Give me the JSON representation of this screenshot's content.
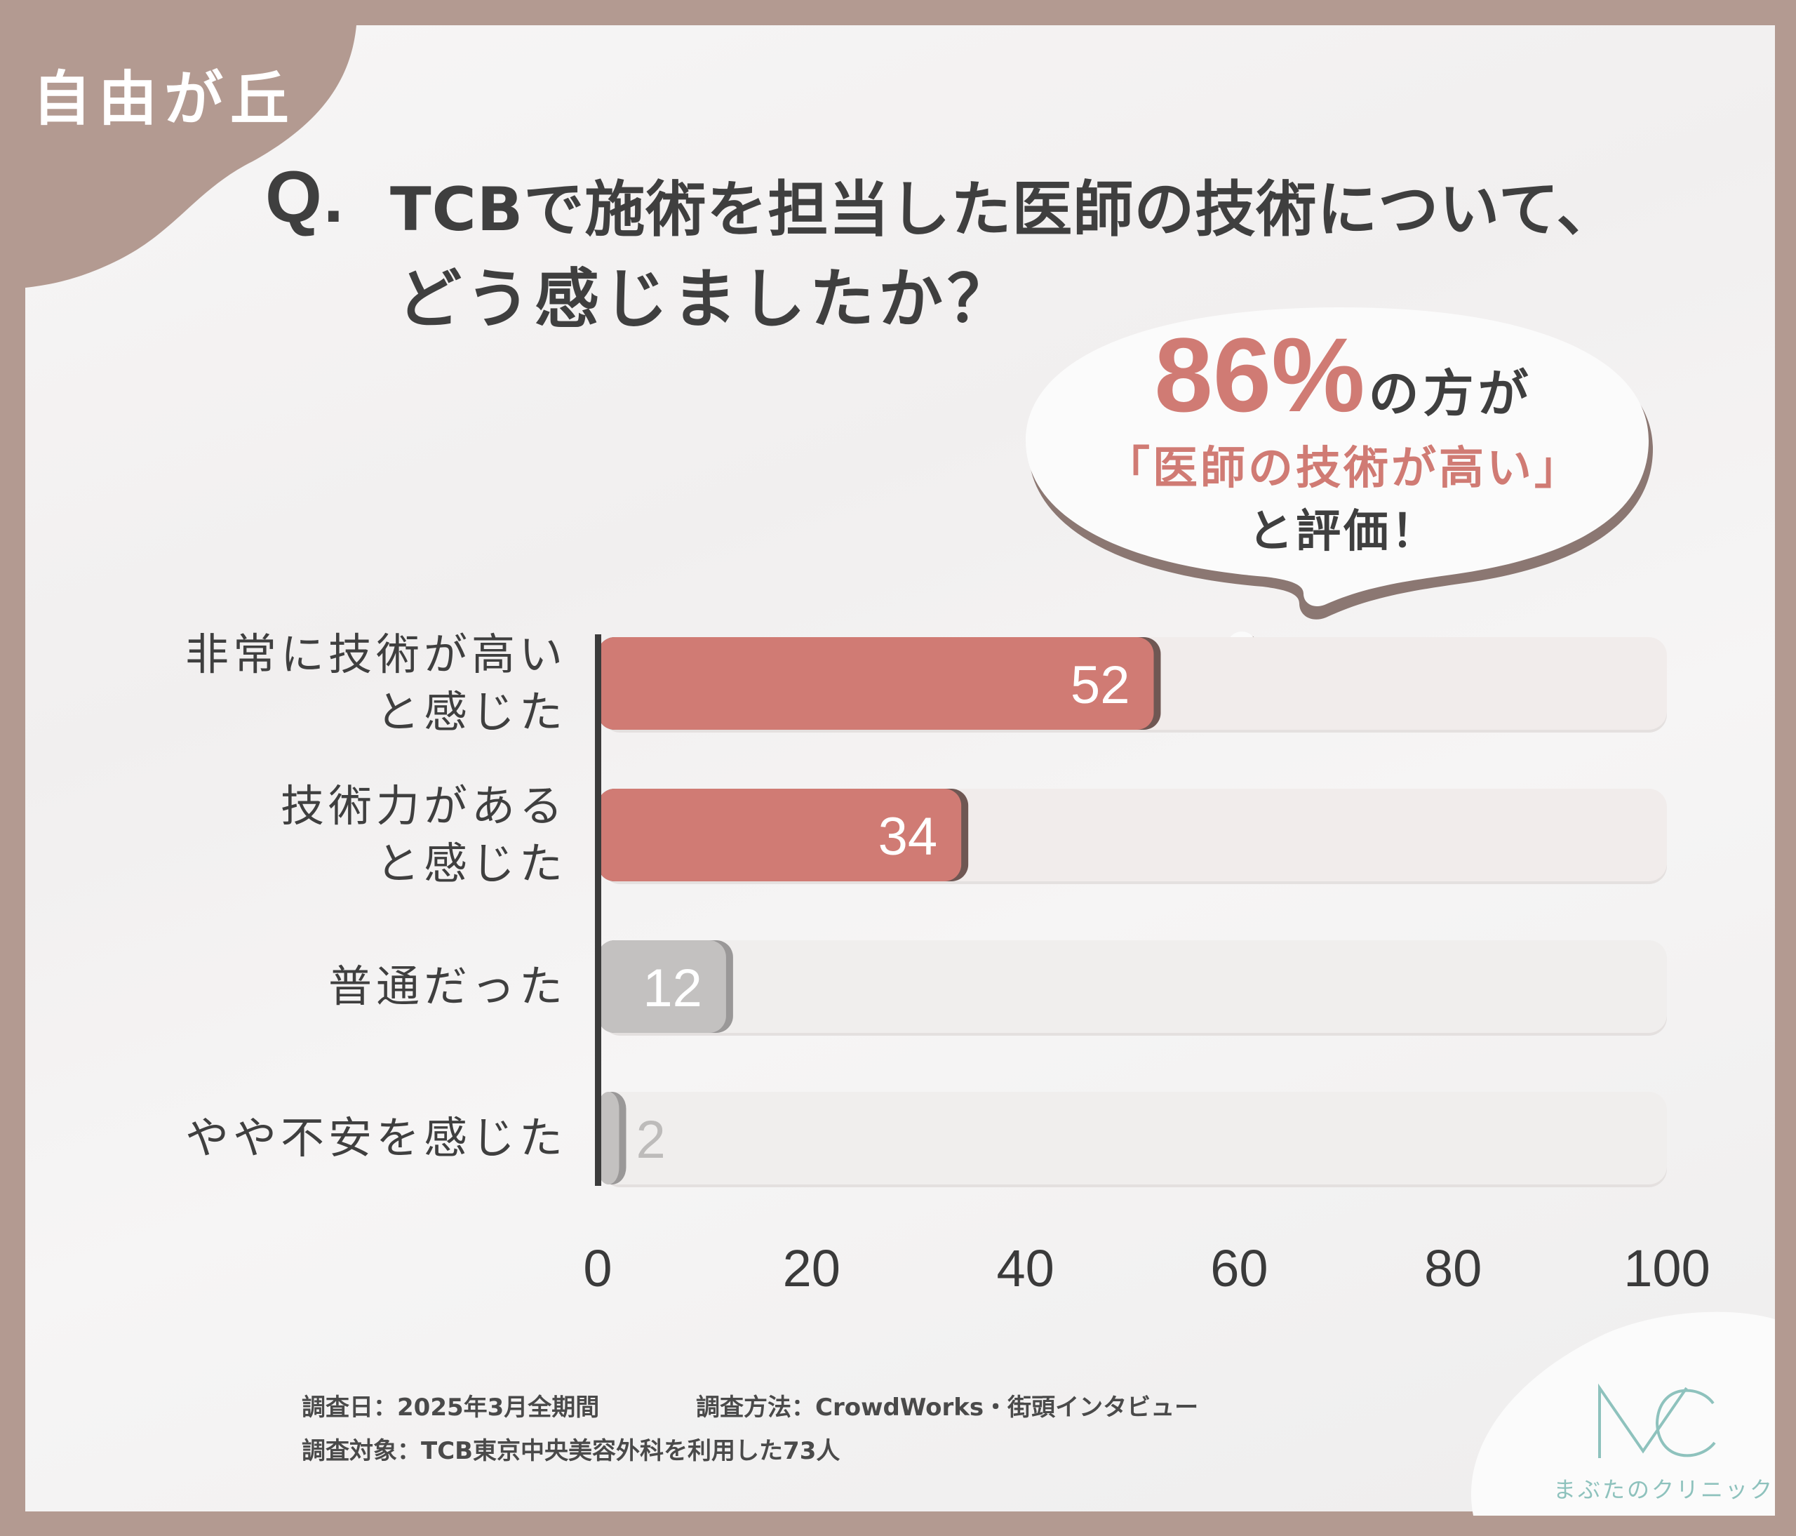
{
  "area_label": "自由が丘",
  "title": {
    "q_prefix": "Q.",
    "line1": "TCBで施術を担当した医師の技術について、",
    "line2": "どう感じましたか？"
  },
  "callout": {
    "percent": "86%",
    "line1_rest": "の方が",
    "line2": "「医師の技術が高い」",
    "line3": "と評価！"
  },
  "colors": {
    "accent": "#d07b74",
    "neutral": "#c3c1c0",
    "track": "#efebea",
    "brand_frame": "#b39a91",
    "logo": "#8ec2bd"
  },
  "chart_data": {
    "type": "bar",
    "orientation": "horizontal",
    "categories": [
      [
        "非常に技術が高い",
        "と感じた"
      ],
      [
        "技術力がある",
        "と感じた"
      ],
      [
        "普通だった"
      ],
      [
        "やや不安を感じた"
      ]
    ],
    "values": [
      52,
      34,
      12,
      2
    ],
    "value_labels": [
      "52",
      "34",
      "12",
      "2"
    ],
    "highlight": [
      true,
      true,
      false,
      false
    ],
    "xlim": [
      0,
      100
    ],
    "xticks": [
      "0",
      "20",
      "40",
      "60",
      "80",
      "100"
    ],
    "grid": false
  },
  "footer": {
    "line1_a": "調査日：2025年3月全期間",
    "line1_b": "調査方法：CrowdWorks・街頭インタビュー",
    "line2": "調査対象：TCB東京中央美容外科を利用した73人"
  },
  "logo": {
    "mark": "MC",
    "name": "まぶたのクリニック"
  }
}
